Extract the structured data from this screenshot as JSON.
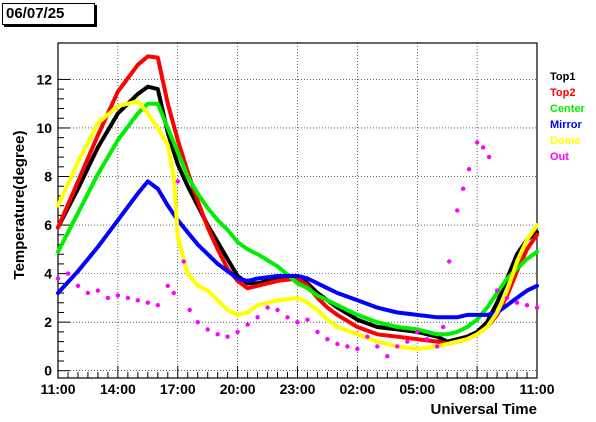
{
  "date_label": "06/07/25",
  "chart_data": {
    "type": "line",
    "title": "",
    "xlabel": "Universal Time",
    "ylabel": "Temperature(degree)",
    "x_ticks": [
      "11:00",
      "14:00",
      "17:00",
      "20:00",
      "23:00",
      "02:00",
      "05:00",
      "08:00",
      "11:00"
    ],
    "x_tick_hours": [
      0,
      3,
      6,
      9,
      12,
      15,
      18,
      21,
      24
    ],
    "x_range_hours": [
      0,
      24
    ],
    "ylim": [
      -0.3,
      13.5
    ],
    "y_ticks": [
      0,
      2,
      4,
      6,
      8,
      10,
      12
    ],
    "grid": true,
    "legend_position": "right",
    "series": [
      {
        "name": "Top1",
        "color": "#000000",
        "style": "line",
        "x": [
          0,
          1,
          2,
          3,
          4,
          4.5,
          5,
          5.5,
          6,
          6.5,
          7,
          7.5,
          8,
          8.5,
          9,
          9.5,
          10,
          11,
          12,
          12.5,
          13,
          13.5,
          14,
          15,
          16,
          17,
          18,
          19,
          19.5,
          20,
          20.5,
          21,
          21.5,
          22,
          22.5,
          23,
          23.5,
          24
        ],
        "y": [
          5.9,
          7.5,
          9.2,
          10.6,
          11.4,
          11.7,
          11.6,
          9.8,
          8.5,
          7.6,
          6.8,
          6.0,
          5.3,
          4.6,
          3.9,
          3.6,
          3.6,
          3.8,
          3.9,
          3.6,
          3.2,
          2.9,
          2.6,
          2.1,
          1.8,
          1.7,
          1.6,
          1.4,
          1.2,
          1.3,
          1.4,
          1.6,
          2.0,
          2.8,
          3.8,
          4.8,
          5.4,
          5.7
        ]
      },
      {
        "name": "Top2",
        "color": "#ff0000",
        "style": "line",
        "x": [
          0,
          1,
          2,
          3,
          4,
          4.5,
          5,
          5.5,
          6,
          6.5,
          7,
          7.5,
          8,
          8.5,
          9,
          9.5,
          10,
          11,
          12,
          12.5,
          13,
          13.5,
          14,
          15,
          16,
          17,
          18,
          19,
          19.5,
          20,
          20.5,
          21,
          21.5,
          22,
          22.5,
          23,
          23.5,
          24
        ],
        "y": [
          5.9,
          7.8,
          9.7,
          11.5,
          12.6,
          12.95,
          12.9,
          11.0,
          9.5,
          8.2,
          7.0,
          5.9,
          5.0,
          4.2,
          3.7,
          3.4,
          3.5,
          3.7,
          3.8,
          3.5,
          3.0,
          2.6,
          2.3,
          1.8,
          1.5,
          1.4,
          1.3,
          1.2,
          1.1,
          1.2,
          1.3,
          1.5,
          1.8,
          2.3,
          3.1,
          4.1,
          5.0,
          5.6
        ]
      },
      {
        "name": "Center",
        "color": "#00ee00",
        "style": "line",
        "x": [
          0,
          1,
          2,
          3,
          4,
          4.5,
          5,
          5.5,
          6,
          6.5,
          7,
          7.5,
          8,
          8.5,
          9,
          9.5,
          10,
          11,
          12,
          12.5,
          13,
          13.5,
          14,
          15,
          16,
          17,
          18,
          19,
          19.5,
          20,
          20.5,
          21,
          21.5,
          22,
          22.5,
          23,
          23.5,
          24
        ],
        "y": [
          4.9,
          6.5,
          8.1,
          9.5,
          10.6,
          11.0,
          11.0,
          10.0,
          9.0,
          8.0,
          7.3,
          6.7,
          6.2,
          5.8,
          5.3,
          5.0,
          4.8,
          4.3,
          3.6,
          3.4,
          3.1,
          2.9,
          2.7,
          2.3,
          2.0,
          1.8,
          1.7,
          1.5,
          1.5,
          1.6,
          1.8,
          2.1,
          2.6,
          3.2,
          3.8,
          4.2,
          4.6,
          4.9
        ]
      },
      {
        "name": "Mirror",
        "color": "#0000ff",
        "style": "line",
        "x": [
          0,
          1,
          2,
          3,
          4,
          4.5,
          5,
          5.5,
          6,
          6.5,
          7,
          7.5,
          8,
          8.5,
          9,
          9.5,
          10,
          11,
          12,
          12.5,
          13,
          13.5,
          14,
          15,
          16,
          17,
          18,
          19,
          19.5,
          20,
          20.5,
          21,
          21.5,
          22,
          22.5,
          23,
          23.5,
          24
        ],
        "y": [
          3.2,
          4.1,
          5.1,
          6.2,
          7.3,
          7.8,
          7.5,
          6.8,
          6.2,
          5.7,
          5.2,
          4.8,
          4.4,
          4.1,
          3.8,
          3.7,
          3.8,
          3.9,
          3.9,
          3.8,
          3.6,
          3.4,
          3.2,
          2.9,
          2.6,
          2.4,
          2.3,
          2.2,
          2.2,
          2.2,
          2.3,
          2.3,
          2.3,
          2.4,
          2.7,
          3.0,
          3.3,
          3.5
        ]
      },
      {
        "name": "Dome",
        "color": "#ffff00",
        "style": "line",
        "x": [
          0,
          1,
          2,
          3,
          4,
          4.5,
          5,
          5.5,
          5.8,
          6,
          6.5,
          7,
          7.5,
          8,
          8.5,
          9,
          9.5,
          10,
          11,
          12,
          12.5,
          13,
          13.5,
          14,
          15,
          16,
          17,
          18,
          19,
          19.5,
          20,
          20.5,
          21,
          21.5,
          22,
          22.5,
          23,
          23.5,
          24
        ],
        "y": [
          6.8,
          8.6,
          10.2,
          10.9,
          11.1,
          10.6,
          10.0,
          9.3,
          8.0,
          5.5,
          4.0,
          3.5,
          3.3,
          2.9,
          2.5,
          2.3,
          2.4,
          2.7,
          2.9,
          3.0,
          2.8,
          2.5,
          2.1,
          1.8,
          1.5,
          1.2,
          1.0,
          0.9,
          1.0,
          1.1,
          1.2,
          1.3,
          1.5,
          1.8,
          2.4,
          3.3,
          4.5,
          5.4,
          6.0
        ]
      },
      {
        "name": "Out",
        "color": "#ff00ff",
        "style": "scatter",
        "x": [
          0,
          0.5,
          1,
          1.5,
          2,
          2.5,
          3,
          3.5,
          4,
          4.5,
          5,
          5.5,
          5.8,
          6,
          6.3,
          6.6,
          7,
          7.5,
          8,
          8.5,
          9,
          9.5,
          10,
          10.5,
          11,
          11.5,
          12,
          12.5,
          13,
          13.5,
          14,
          14.5,
          15,
          15.5,
          16,
          16.5,
          17,
          17.5,
          18,
          18.5,
          19,
          19.3,
          19.6,
          20,
          20.3,
          20.6,
          21,
          21.3,
          21.6,
          22,
          22.5,
          23,
          23.5,
          24
        ],
        "y": [
          3.8,
          4.0,
          3.5,
          3.2,
          3.3,
          3.0,
          3.1,
          3.0,
          2.9,
          2.8,
          2.7,
          3.5,
          3.2,
          7.8,
          4.5,
          2.5,
          2.0,
          1.7,
          1.5,
          1.4,
          1.6,
          1.9,
          2.2,
          2.6,
          2.5,
          2.2,
          2.0,
          2.1,
          1.6,
          1.3,
          1.1,
          1.0,
          0.9,
          1.4,
          1.0,
          0.6,
          1.0,
          1.2,
          1.6,
          1.3,
          1.0,
          1.8,
          4.5,
          6.6,
          7.5,
          8.3,
          9.4,
          9.2,
          8.8,
          3.3,
          3.0,
          2.8,
          2.7,
          2.6
        ]
      }
    ]
  }
}
